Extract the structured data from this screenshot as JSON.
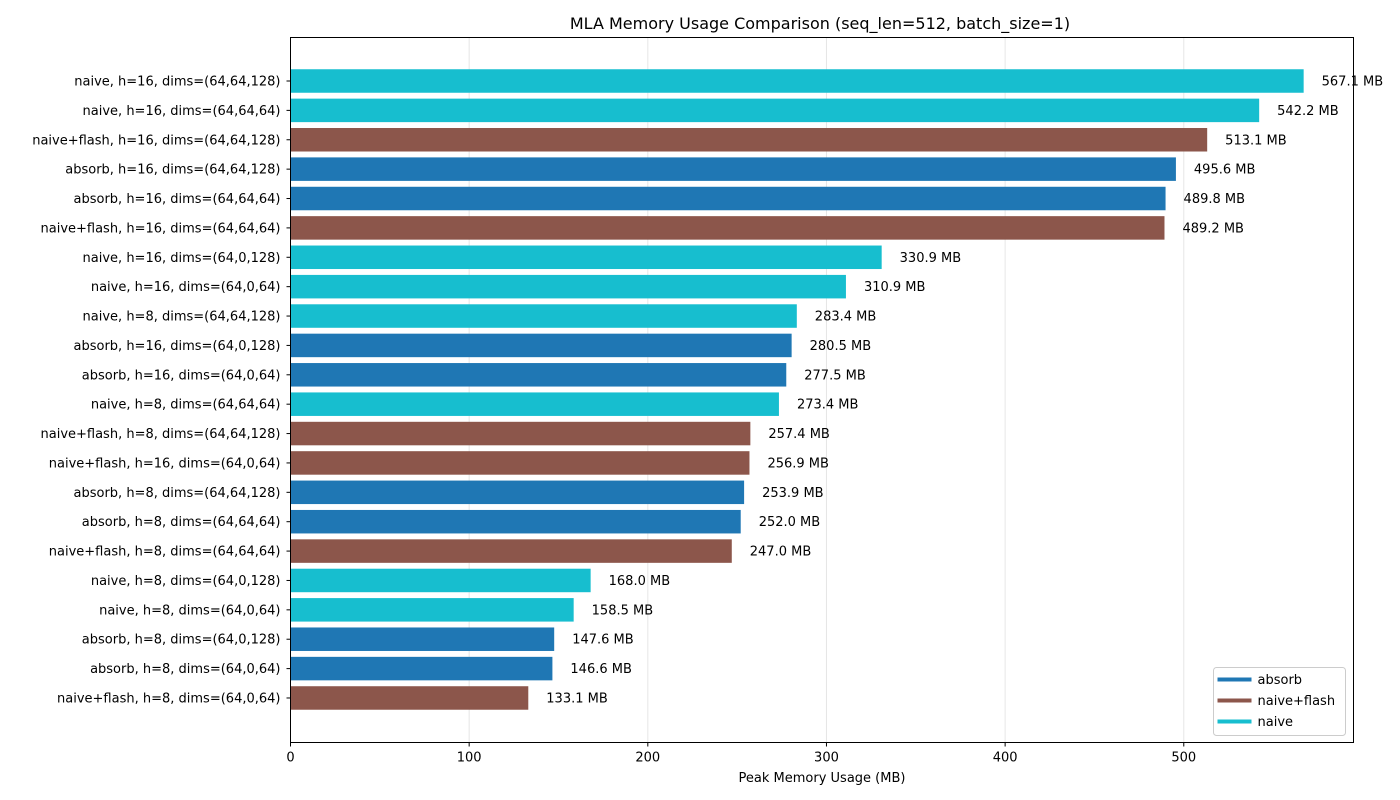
{
  "chart_data": {
    "type": "bar",
    "orientation": "horizontal",
    "title": "MLA Memory Usage Comparison (seq_len=512, batch_size=1)",
    "xlabel": "Peak Memory Usage (MB)",
    "ylabel": "",
    "xlim": [
      0,
      595
    ],
    "xticks": [
      0,
      100,
      200,
      300,
      400,
      500
    ],
    "grid": "vertical",
    "legend_position": "lower-right",
    "value_suffix": " MB",
    "legend": [
      {
        "name": "absorb",
        "color": "#1f77b4"
      },
      {
        "name": "naive+flash",
        "color": "#8c564b"
      },
      {
        "name": "naive",
        "color": "#17becf"
      }
    ],
    "bars": [
      {
        "label": "naive, h=16, dims=(64,64,128)",
        "value": 567.1,
        "group": "naive"
      },
      {
        "label": "naive, h=16, dims=(64,64,64)",
        "value": 542.2,
        "group": "naive"
      },
      {
        "label": "naive+flash, h=16, dims=(64,64,128)",
        "value": 513.1,
        "group": "naive+flash"
      },
      {
        "label": "absorb, h=16, dims=(64,64,128)",
        "value": 495.6,
        "group": "absorb"
      },
      {
        "label": "absorb, h=16, dims=(64,64,64)",
        "value": 489.8,
        "group": "absorb"
      },
      {
        "label": "naive+flash, h=16, dims=(64,64,64)",
        "value": 489.2,
        "group": "naive+flash"
      },
      {
        "label": "naive, h=16, dims=(64,0,128)",
        "value": 330.9,
        "group": "naive"
      },
      {
        "label": "naive, h=16, dims=(64,0,64)",
        "value": 310.9,
        "group": "naive"
      },
      {
        "label": "naive, h=8, dims=(64,64,128)",
        "value": 283.4,
        "group": "naive"
      },
      {
        "label": "absorb, h=16, dims=(64,0,128)",
        "value": 280.5,
        "group": "absorb"
      },
      {
        "label": "absorb, h=16, dims=(64,0,64)",
        "value": 277.5,
        "group": "absorb"
      },
      {
        "label": "naive, h=8, dims=(64,64,64)",
        "value": 273.4,
        "group": "naive"
      },
      {
        "label": "naive+flash, h=8, dims=(64,64,128)",
        "value": 257.4,
        "group": "naive+flash"
      },
      {
        "label": "naive+flash, h=16, dims=(64,0,64)",
        "value": 256.9,
        "group": "naive+flash"
      },
      {
        "label": "absorb, h=8, dims=(64,64,128)",
        "value": 253.9,
        "group": "absorb"
      },
      {
        "label": "absorb, h=8, dims=(64,64,64)",
        "value": 252.0,
        "group": "absorb"
      },
      {
        "label": "naive+flash, h=8, dims=(64,64,64)",
        "value": 247.0,
        "group": "naive+flash"
      },
      {
        "label": "naive, h=8, dims=(64,0,128)",
        "value": 168.0,
        "group": "naive"
      },
      {
        "label": "naive, h=8, dims=(64,0,64)",
        "value": 158.5,
        "group": "naive"
      },
      {
        "label": "absorb, h=8, dims=(64,0,128)",
        "value": 147.6,
        "group": "absorb"
      },
      {
        "label": "absorb, h=8, dims=(64,0,64)",
        "value": 146.6,
        "group": "absorb"
      },
      {
        "label": "naive+flash, h=8, dims=(64,0,64)",
        "value": 133.1,
        "group": "naive+flash"
      }
    ]
  }
}
